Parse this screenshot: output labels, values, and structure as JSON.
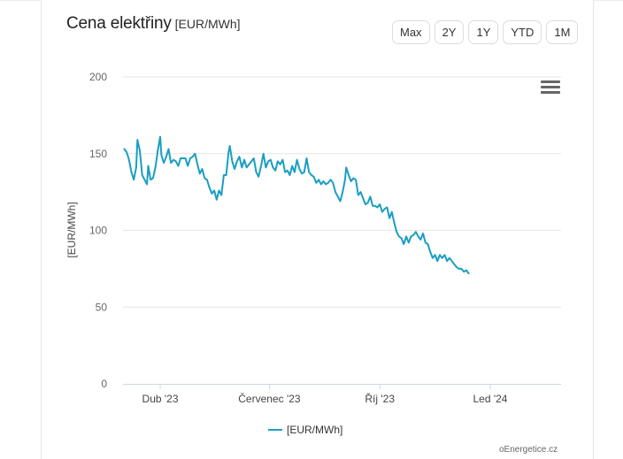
{
  "header": {
    "title": "Cena elektřiny",
    "unit": "[EUR/MWh]"
  },
  "range_buttons": [
    "Max",
    "2Y",
    "1Y",
    "YTD",
    "1M"
  ],
  "colors": {
    "series": "#1a9ec2",
    "grid": "#e6e6e6",
    "axis": "#ccd6eb"
  },
  "icons": {
    "menu": "hamburger-menu-icon"
  },
  "credits": "oEnergetice.cz",
  "chart_data": {
    "type": "line",
    "title": "Cena elektřiny",
    "xlabel": "",
    "ylabel": "[EUR/MWh]",
    "ylim": [
      0,
      200
    ],
    "yticks": [
      0,
      50,
      100,
      150,
      200
    ],
    "xlim": [
      "2023-03-01",
      "2024-02-29"
    ],
    "xticks": [
      {
        "date": "2023-04-01",
        "label": "Dub '23"
      },
      {
        "date": "2023-07-01",
        "label": "Červenec '23"
      },
      {
        "date": "2023-10-01",
        "label": "Říj '23"
      },
      {
        "date": "2024-01-01",
        "label": "Led '24"
      }
    ],
    "grid": true,
    "legend": "bottom-center",
    "series": [
      {
        "name": "[EUR/MWh]",
        "points": [
          [
            "2023-03-02",
            153
          ],
          [
            "2023-03-04",
            151
          ],
          [
            "2023-03-06",
            146
          ],
          [
            "2023-03-08",
            138
          ],
          [
            "2023-03-10",
            133
          ],
          [
            "2023-03-12",
            141
          ],
          [
            "2023-03-13",
            159
          ],
          [
            "2023-03-15",
            152
          ],
          [
            "2023-03-17",
            136
          ],
          [
            "2023-03-19",
            133
          ],
          [
            "2023-03-21",
            130
          ],
          [
            "2023-03-22",
            142
          ],
          [
            "2023-03-24",
            133
          ],
          [
            "2023-03-26",
            134
          ],
          [
            "2023-03-28",
            141
          ],
          [
            "2023-03-30",
            152
          ],
          [
            "2023-04-01",
            161
          ],
          [
            "2023-04-02",
            149
          ],
          [
            "2023-04-04",
            144
          ],
          [
            "2023-04-06",
            148
          ],
          [
            "2023-04-08",
            153
          ],
          [
            "2023-04-10",
            144
          ],
          [
            "2023-04-12",
            146
          ],
          [
            "2023-04-14",
            145
          ],
          [
            "2023-04-16",
            142
          ],
          [
            "2023-04-18",
            147
          ],
          [
            "2023-04-20",
            147
          ],
          [
            "2023-04-22",
            147
          ],
          [
            "2023-04-24",
            142
          ],
          [
            "2023-04-26",
            147
          ],
          [
            "2023-04-28",
            148
          ],
          [
            "2023-04-30",
            150
          ],
          [
            "2023-05-02",
            143
          ],
          [
            "2023-05-04",
            137
          ],
          [
            "2023-05-06",
            140
          ],
          [
            "2023-05-08",
            134
          ],
          [
            "2023-05-10",
            133
          ],
          [
            "2023-05-12",
            128
          ],
          [
            "2023-05-14",
            124
          ],
          [
            "2023-05-16",
            126
          ],
          [
            "2023-05-18",
            120
          ],
          [
            "2023-05-20",
            126
          ],
          [
            "2023-05-22",
            123
          ],
          [
            "2023-05-24",
            136
          ],
          [
            "2023-05-26",
            136
          ],
          [
            "2023-05-28",
            151
          ],
          [
            "2023-05-29",
            155
          ],
          [
            "2023-05-31",
            145
          ],
          [
            "2023-06-02",
            140
          ],
          [
            "2023-06-04",
            145
          ],
          [
            "2023-06-06",
            148
          ],
          [
            "2023-06-08",
            141
          ],
          [
            "2023-06-10",
            146
          ],
          [
            "2023-06-12",
            141
          ],
          [
            "2023-06-14",
            143
          ],
          [
            "2023-06-16",
            145
          ],
          [
            "2023-06-18",
            147
          ],
          [
            "2023-06-20",
            138
          ],
          [
            "2023-06-22",
            135
          ],
          [
            "2023-06-24",
            142
          ],
          [
            "2023-06-26",
            150
          ],
          [
            "2023-06-28",
            141
          ],
          [
            "2023-06-30",
            145
          ],
          [
            "2023-07-02",
            146
          ],
          [
            "2023-07-04",
            141
          ],
          [
            "2023-07-06",
            139
          ],
          [
            "2023-07-08",
            145
          ],
          [
            "2023-07-10",
            143
          ],
          [
            "2023-07-12",
            146
          ],
          [
            "2023-07-14",
            138
          ],
          [
            "2023-07-16",
            139
          ],
          [
            "2023-07-18",
            136
          ],
          [
            "2023-07-20",
            142
          ],
          [
            "2023-07-22",
            138
          ],
          [
            "2023-07-24",
            146
          ],
          [
            "2023-07-26",
            140
          ],
          [
            "2023-07-28",
            137
          ],
          [
            "2023-07-30",
            138
          ],
          [
            "2023-08-01",
            147
          ],
          [
            "2023-08-03",
            138
          ],
          [
            "2023-08-05",
            136
          ],
          [
            "2023-08-07",
            135
          ],
          [
            "2023-08-09",
            131
          ],
          [
            "2023-08-11",
            133
          ],
          [
            "2023-08-13",
            130
          ],
          [
            "2023-08-15",
            132
          ],
          [
            "2023-08-17",
            130
          ],
          [
            "2023-08-19",
            131
          ],
          [
            "2023-08-21",
            133
          ],
          [
            "2023-08-23",
            131
          ],
          [
            "2023-08-25",
            125
          ],
          [
            "2023-08-27",
            122
          ],
          [
            "2023-08-29",
            119
          ],
          [
            "2023-08-31",
            125
          ],
          [
            "2023-09-02",
            133
          ],
          [
            "2023-09-03",
            141
          ],
          [
            "2023-09-05",
            136
          ],
          [
            "2023-09-07",
            132
          ],
          [
            "2023-09-09",
            134
          ],
          [
            "2023-09-11",
            133
          ],
          [
            "2023-09-13",
            123
          ],
          [
            "2023-09-15",
            125
          ],
          [
            "2023-09-17",
            121
          ],
          [
            "2023-09-19",
            117
          ],
          [
            "2023-09-21",
            118
          ],
          [
            "2023-09-23",
            122
          ],
          [
            "2023-09-25",
            116
          ],
          [
            "2023-09-27",
            116
          ],
          [
            "2023-09-29",
            115
          ],
          [
            "2023-10-01",
            117
          ],
          [
            "2023-10-03",
            112
          ],
          [
            "2023-10-05",
            114
          ],
          [
            "2023-10-07",
            115
          ],
          [
            "2023-10-09",
            108
          ],
          [
            "2023-10-11",
            112
          ],
          [
            "2023-10-13",
            105
          ],
          [
            "2023-10-15",
            99
          ],
          [
            "2023-10-17",
            96
          ],
          [
            "2023-10-19",
            95
          ],
          [
            "2023-10-21",
            91
          ],
          [
            "2023-10-23",
            96
          ],
          [
            "2023-10-25",
            92
          ],
          [
            "2023-10-27",
            96
          ],
          [
            "2023-10-29",
            97
          ],
          [
            "2023-10-31",
            99
          ],
          [
            "2023-11-02",
            96
          ],
          [
            "2023-11-04",
            94
          ],
          [
            "2023-11-06",
            98
          ],
          [
            "2023-11-08",
            92
          ],
          [
            "2023-11-10",
            91
          ],
          [
            "2023-11-12",
            86
          ],
          [
            "2023-11-14",
            82
          ],
          [
            "2023-11-16",
            84
          ],
          [
            "2023-11-18",
            80
          ],
          [
            "2023-11-20",
            84
          ],
          [
            "2023-11-22",
            82
          ],
          [
            "2023-11-24",
            84
          ],
          [
            "2023-11-26",
            80
          ],
          [
            "2023-11-28",
            82
          ],
          [
            "2023-11-30",
            80
          ],
          [
            "2023-12-02",
            78
          ],
          [
            "2023-12-04",
            76
          ],
          [
            "2023-12-06",
            75
          ],
          [
            "2023-12-08",
            75
          ],
          [
            "2023-12-10",
            73
          ],
          [
            "2023-12-12",
            74
          ],
          [
            "2023-12-14",
            72
          ]
        ]
      }
    ]
  }
}
